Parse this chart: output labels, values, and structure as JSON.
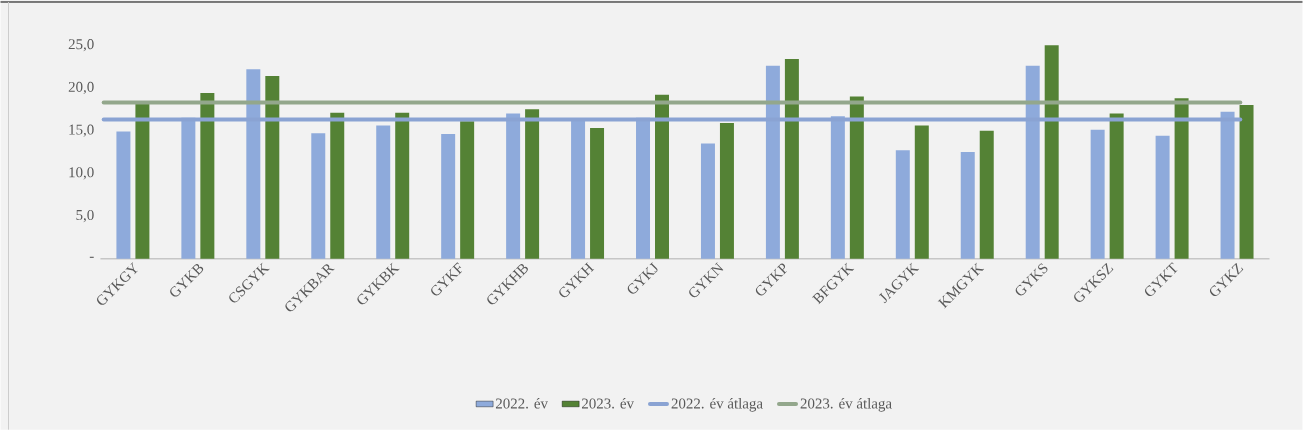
{
  "chart_data": {
    "type": "bar",
    "categories": [
      "GYKGY",
      "GYKB",
      "CSGYK",
      "GYKBAR",
      "GYKBK",
      "GYKF",
      "GYKHB",
      "GYKH",
      "GYKJ",
      "GYKN",
      "GYKP",
      "BFGYK",
      "JAGYK",
      "KMGYK",
      "GYKS",
      "GYKSZ",
      "GYKT",
      "GYKZ"
    ],
    "series": [
      {
        "name": "2022. év",
        "color": "#8eaadb",
        "values": [
          14.9,
          16.5,
          22.2,
          14.7,
          15.6,
          14.6,
          17.0,
          16.3,
          16.5,
          13.5,
          22.6,
          16.7,
          12.7,
          12.5,
          22.6,
          15.1,
          14.4,
          17.2
        ]
      },
      {
        "name": "2023. év",
        "color": "#548235",
        "values": [
          18.3,
          19.4,
          21.4,
          17.1,
          17.1,
          16.1,
          17.5,
          15.3,
          19.2,
          15.9,
          23.4,
          19.0,
          15.6,
          15.0,
          25.0,
          17.0,
          18.8,
          18.0
        ]
      }
    ],
    "ref_lines": [
      {
        "axis": "y",
        "value": 16.3,
        "label": "2022. év átlaga",
        "color": "#8aa3d3"
      },
      {
        "axis": "y",
        "value": 18.3,
        "label": "2023. év átlaga",
        "color": "#93a78c"
      }
    ],
    "ylim": [
      0,
      25
    ],
    "yticks": [
      {
        "value": 0,
        "label": "-"
      },
      {
        "value": 5,
        "label": "5,0"
      },
      {
        "value": 10,
        "label": "10,0"
      },
      {
        "value": 15,
        "label": "15,0"
      },
      {
        "value": 20,
        "label": "20,0"
      },
      {
        "value": 25,
        "label": "25,0"
      }
    ],
    "legend": "bottom"
  }
}
